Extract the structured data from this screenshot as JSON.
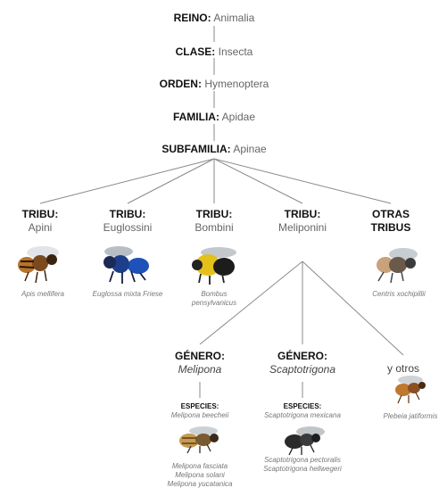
{
  "ranks": [
    {
      "label": "REINO:",
      "value": "Animalia"
    },
    {
      "label": "CLASE:",
      "value": "Insecta"
    },
    {
      "label": "ORDEN:",
      "value": "Hymenoptera"
    },
    {
      "label": "FAMILIA:",
      "value": "Apidae"
    },
    {
      "label": "SUBFAMILIA:",
      "value": "Apinae"
    }
  ],
  "tribes": [
    {
      "label": "TRIBU:",
      "value": "Apini",
      "species": "Apis mellifera"
    },
    {
      "label": "TRIBU:",
      "value": "Euglossini",
      "species": "Euglossa mixta Friese"
    },
    {
      "label": "TRIBU:",
      "value": "Bombini",
      "species": "Bombus pensylvanicus"
    },
    {
      "label": "TRIBU:",
      "value": "Meliponini"
    },
    {
      "label": "OTRAS TRIBUS",
      "species": "Centris xochipillii"
    }
  ],
  "genera": [
    {
      "label": "GÉNERO:",
      "value": "Melipona",
      "species_header": "ESPECIES:",
      "species_top": "Melipona beecheii",
      "species_bottom": [
        "Melipona fasciata",
        "Melipona solani",
        "Melipona yucatanica"
      ]
    },
    {
      "label": "GÉNERO:",
      "value": "Scaptotrigona",
      "species_header": "ESPECIES:",
      "species_top": "Scaptotrigona mexicana",
      "species_bottom": [
        "Scaptotrigona pectoralis",
        "Scaptotrigona hellwegeri"
      ]
    },
    {
      "value": "y otros",
      "species": "Plebeia jatiformis"
    }
  ]
}
